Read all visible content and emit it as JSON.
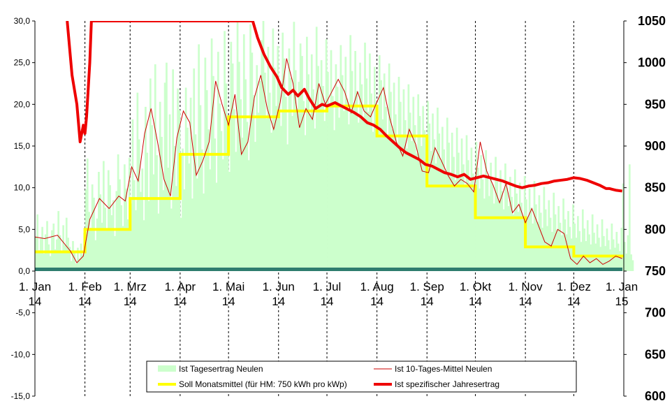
{
  "chart_data": {
    "type": "bar+line",
    "title": "",
    "x_range": [
      "2014-01-01",
      "2015-01-01"
    ],
    "x_ticks": [
      {
        "label": "1. Jan",
        "year": "14",
        "date": "2014-01-01"
      },
      {
        "label": "1. Feb",
        "year": "14",
        "date": "2014-02-01"
      },
      {
        "label": "1. Mrz",
        "year": "14",
        "date": "2014-03-01"
      },
      {
        "label": "1. Apr",
        "year": "14",
        "date": "2014-04-01"
      },
      {
        "label": "1. Mai",
        "year": "14",
        "date": "2014-05-01"
      },
      {
        "label": "1. Jun",
        "year": "14",
        "date": "2014-06-01"
      },
      {
        "label": "1. Jul",
        "year": "14",
        "date": "2014-07-01"
      },
      {
        "label": "1. Aug",
        "year": "14",
        "date": "2014-08-01"
      },
      {
        "label": "1. Sep",
        "year": "14",
        "date": "2014-09-01"
      },
      {
        "label": "1. Okt",
        "year": "14",
        "date": "2014-10-01"
      },
      {
        "label": "1. Nov",
        "year": "14",
        "date": "2014-11-01"
      },
      {
        "label": "1. Dez",
        "year": "14",
        "date": "2014-12-01"
      },
      {
        "label": "1. Jan",
        "year": "15",
        "date": "2015-01-01"
      }
    ],
    "y_left": {
      "min": -15,
      "max": 30,
      "step": 5,
      "ticks": [
        "30,0",
        "25,0",
        "20,0",
        "15,0",
        "10,0",
        "5,0",
        "0,0",
        "-5,0",
        "-10,0",
        "-15,0"
      ]
    },
    "y_right": {
      "min": 600,
      "max": 1050,
      "step": 50,
      "ticks": [
        "1050",
        "1000",
        "950",
        "900",
        "850",
        "800",
        "750",
        "700",
        "650",
        "600"
      ]
    },
    "grid": "vertical dashed at month starts",
    "legend_position": "bottom",
    "colors": {
      "bars": "#ccffcc",
      "avg10": "#cc0000",
      "soll": "#ffff00",
      "jahresertrag": "#ee0000",
      "baseline": "#2e7d6e"
    },
    "series": [
      {
        "name": "Ist Tagesertrag Neulen",
        "kind": "bar",
        "axis": "left",
        "description": "daily yield (kWh/kWp), 365 values starting 1 Jan 2014",
        "values": [
          4.1,
          6.8,
          2.5,
          3.9,
          5.3,
          2.1,
          4.4,
          6.0,
          3.2,
          1.8,
          4.9,
          5.7,
          2.6,
          3.8,
          7.2,
          4.3,
          2.2,
          5.5,
          3.1,
          6.4,
          4.0,
          2.9,
          1.2,
          3.6,
          2.4,
          0.9,
          2.8,
          1.5,
          3.3,
          2.0,
          4.6,
          9.8,
          13.5,
          7.1,
          5.2,
          10.4,
          8.8,
          3.7,
          6.3,
          11.9,
          9.2,
          5.8,
          13.2,
          7.6,
          4.9,
          12.1,
          10.3,
          6.7,
          8.5,
          4.2,
          9.6,
          14.0,
          11.0,
          7.9,
          5.4,
          12.8,
          9.9,
          6.2,
          13.6,
          8.1,
          18.2,
          10.9,
          7.3,
          21.4,
          15.8,
          9.5,
          12.3,
          6.1,
          19.7,
          14.2,
          8.4,
          23.1,
          17.5,
          11.6,
          24.8,
          13.9,
          6.9,
          20.3,
          16.1,
          9.7,
          22.6,
          25.0,
          12.4,
          18.8,
          7.5,
          24.2,
          15.0,
          10.2,
          21.9,
          19.3,
          6.4,
          14.7,
          9.8,
          22.0,
          17.2,
          12.9,
          20.8,
          8.7,
          24.3,
          16.4,
          11.1,
          27.2,
          19.9,
          14.6,
          9.3,
          25.6,
          21.7,
          17.0,
          12.2,
          27.9,
          23.4,
          15.9,
          10.6,
          26.3,
          20.1,
          16.8,
          13.4,
          28.8,
          22.5,
          18.7,
          11.9,
          27.5,
          24.9,
          19.4,
          14.3,
          30.0,
          25.1,
          20.6,
          16.0,
          28.4,
          23.0,
          17.9,
          13.3,
          29.6,
          26.2,
          21.1,
          15.5,
          24.7,
          19.0,
          22.8,
          27.7,
          30.0,
          23.8,
          18.3,
          26.9,
          21.4,
          16.6,
          29.1,
          24.4,
          19.8,
          27.0,
          22.3,
          17.4,
          28.6,
          25.5,
          20.9,
          15.2,
          26.7,
          23.2,
          18.6,
          29.9,
          24.1,
          19.5,
          22.7,
          27.3,
          25.8,
          20.4,
          16.3,
          28.1,
          23.6,
          18.9,
          26.0,
          21.8,
          17.1,
          29.3,
          24.6,
          20.0,
          25.3,
          22.2,
          18.0,
          27.8,
          23.9,
          19.6,
          26.5,
          21.0,
          16.9,
          24.8,
          22.1,
          18.4,
          27.1,
          23.5,
          19.2,
          25.7,
          20.7,
          17.6,
          28.3,
          24.0,
          19.9,
          26.4,
          21.6,
          17.8,
          25.0,
          22.4,
          18.5,
          27.4,
          23.1,
          19.1,
          26.1,
          21.3,
          16.7,
          24.5,
          20.2,
          17.3,
          25.9,
          22.9,
          18.2,
          23.7,
          19.7,
          16.1,
          24.9,
          21.5,
          17.0,
          22.6,
          18.8,
          15.3,
          23.3,
          20.3,
          16.4,
          21.8,
          18.1,
          14.7,
          22.4,
          19.0,
          15.6,
          20.9,
          17.5,
          14.1,
          21.2,
          18.6,
          15.0,
          19.8,
          16.9,
          13.5,
          20.4,
          17.7,
          14.4,
          18.9,
          15.8,
          12.9,
          19.6,
          16.5,
          13.2,
          17.3,
          14.6,
          12.0,
          18.4,
          15.4,
          11.8,
          16.6,
          13.7,
          10.9,
          17.2,
          14.2,
          11.3,
          15.9,
          12.8,
          10.1,
          16.3,
          13.3,
          10.6,
          14.8,
          11.7,
          9.4,
          15.5,
          12.4,
          9.9,
          13.9,
          11.0,
          8.7,
          14.5,
          11.5,
          9.0,
          13.0,
          10.4,
          8.1,
          13.7,
          10.8,
          8.5,
          12.1,
          9.6,
          7.4,
          12.9,
          10.0,
          7.8,
          11.3,
          8.9,
          6.8,
          12.2,
          9.3,
          7.1,
          10.6,
          8.2,
          6.2,
          11.4,
          8.6,
          6.5,
          9.9,
          7.6,
          5.7,
          10.8,
          8.0,
          5.9,
          9.1,
          7.0,
          5.2,
          10.1,
          7.4,
          5.4,
          8.5,
          6.4,
          4.7,
          9.4,
          6.8,
          4.9,
          7.8,
          5.8,
          4.3,
          8.7,
          6.2,
          4.4,
          7.2,
          5.3,
          3.9,
          8.0,
          5.7,
          4.0,
          6.6,
          4.8,
          3.5,
          7.4,
          5.1,
          3.6,
          6.1,
          4.4,
          3.2,
          6.8,
          4.6,
          3.3,
          5.6,
          4.0,
          2.9,
          6.2,
          4.2,
          3.0,
          5.1,
          3.7,
          2.6,
          5.7,
          3.8,
          2.8,
          4.7,
          3.3,
          2.4,
          5.2,
          10.5,
          3.5,
          2.1,
          4.3,
          12.8,
          2.0,
          1.3
        ]
      },
      {
        "name": "Ist 10-Tages-Mittel Neulen",
        "kind": "line",
        "axis": "left",
        "points": [
          [
            0,
            4.1
          ],
          [
            6,
            3.9
          ],
          [
            14,
            4.3
          ],
          [
            22,
            2.4
          ],
          [
            26,
            1.0
          ],
          [
            30,
            1.8
          ],
          [
            34,
            6.2
          ],
          [
            40,
            8.7
          ],
          [
            46,
            7.5
          ],
          [
            52,
            9.0
          ],
          [
            56,
            8.4
          ],
          [
            60,
            12.5
          ],
          [
            64,
            10.8
          ],
          [
            68,
            16.5
          ],
          [
            72,
            19.5
          ],
          [
            76,
            15.5
          ],
          [
            80,
            11.0
          ],
          [
            84,
            9.0
          ],
          [
            88,
            16.0
          ],
          [
            92,
            19.2
          ],
          [
            96,
            17.8
          ],
          [
            100,
            11.5
          ],
          [
            104,
            13.2
          ],
          [
            108,
            15.5
          ],
          [
            112,
            22.8
          ],
          [
            116,
            20.0
          ],
          [
            120,
            17.5
          ],
          [
            124,
            21.2
          ],
          [
            128,
            14.0
          ],
          [
            132,
            15.5
          ],
          [
            136,
            20.8
          ],
          [
            140,
            23.5
          ],
          [
            144,
            19.5
          ],
          [
            148,
            17.0
          ],
          [
            152,
            20.2
          ],
          [
            156,
            25.5
          ],
          [
            160,
            22.5
          ],
          [
            164,
            17.2
          ],
          [
            168,
            19.5
          ],
          [
            172,
            18.2
          ],
          [
            176,
            22.5
          ],
          [
            180,
            20.0
          ],
          [
            184,
            21.5
          ],
          [
            188,
            23.0
          ],
          [
            192,
            21.5
          ],
          [
            196,
            19.0
          ],
          [
            200,
            21.5
          ],
          [
            204,
            19.2
          ],
          [
            208,
            18.5
          ],
          [
            212,
            20.3
          ],
          [
            216,
            22.0
          ],
          [
            220,
            18.3
          ],
          [
            224,
            15.5
          ],
          [
            228,
            13.8
          ],
          [
            232,
            17.0
          ],
          [
            236,
            15.2
          ],
          [
            240,
            12.0
          ],
          [
            244,
            11.8
          ],
          [
            248,
            14.8
          ],
          [
            252,
            13.2
          ],
          [
            256,
            11.5
          ],
          [
            260,
            10.2
          ],
          [
            264,
            11.0
          ],
          [
            268,
            10.5
          ],
          [
            272,
            9.5
          ],
          [
            276,
            15.5
          ],
          [
            280,
            12.0
          ],
          [
            284,
            10.3
          ],
          [
            288,
            8.2
          ],
          [
            292,
            10.5
          ],
          [
            296,
            7.0
          ],
          [
            300,
            8.0
          ],
          [
            304,
            5.8
          ],
          [
            308,
            7.5
          ],
          [
            312,
            5.5
          ],
          [
            316,
            3.5
          ],
          [
            320,
            3.0
          ],
          [
            324,
            5.0
          ],
          [
            328,
            4.5
          ],
          [
            332,
            1.5
          ],
          [
            336,
            0.8
          ],
          [
            340,
            1.8
          ],
          [
            344,
            1.0
          ],
          [
            348,
            1.5
          ],
          [
            352,
            0.8
          ],
          [
            356,
            1.2
          ],
          [
            360,
            1.8
          ],
          [
            364,
            1.5
          ]
        ]
      },
      {
        "name": "Soll Monatsmittel (für HM: 750 kWh pro kWp)",
        "kind": "step",
        "axis": "left",
        "months": [
          "Jan",
          "Feb",
          "Mrz",
          "Apr",
          "Mai",
          "Jun",
          "Jul",
          "Aug",
          "Sep",
          "Okt",
          "Nov",
          "Dez"
        ],
        "values": [
          2.3,
          5.0,
          8.7,
          14.0,
          18.5,
          19.2,
          19.8,
          16.2,
          10.2,
          6.4,
          2.9,
          1.8
        ]
      },
      {
        "name": "Ist spezifischer Jahresertrag",
        "kind": "line",
        "axis": "right",
        "points": [
          [
            20,
            1050
          ],
          [
            23,
            985
          ],
          [
            26,
            950
          ],
          [
            28,
            905
          ],
          [
            30,
            925
          ],
          [
            31,
            915
          ],
          [
            32,
            935
          ],
          [
            34,
            1000
          ],
          [
            35,
            1050
          ],
          [
            135,
            1050
          ],
          [
            138,
            1030
          ],
          [
            142,
            1010
          ],
          [
            146,
            995
          ],
          [
            150,
            983
          ],
          [
            153,
            970
          ],
          [
            157,
            962
          ],
          [
            160,
            967
          ],
          [
            163,
            960
          ],
          [
            167,
            968
          ],
          [
            170,
            957
          ],
          [
            174,
            945
          ],
          [
            178,
            950
          ],
          [
            181,
            948
          ],
          [
            186,
            952
          ],
          [
            190,
            948
          ],
          [
            194,
            944
          ],
          [
            198,
            940
          ],
          [
            202,
            935
          ],
          [
            206,
            928
          ],
          [
            210,
            925
          ],
          [
            214,
            920
          ],
          [
            218,
            912
          ],
          [
            222,
            905
          ],
          [
            226,
            898
          ],
          [
            230,
            892
          ],
          [
            234,
            888
          ],
          [
            238,
            884
          ],
          [
            242,
            878
          ],
          [
            246,
            876
          ],
          [
            250,
            872
          ],
          [
            254,
            868
          ],
          [
            258,
            866
          ],
          [
            262,
            863
          ],
          [
            266,
            866
          ],
          [
            270,
            860
          ],
          [
            274,
            862
          ],
          [
            278,
            864
          ],
          [
            282,
            862
          ],
          [
            286,
            860
          ],
          [
            290,
            858
          ],
          [
            294,
            855
          ],
          [
            298,
            852
          ],
          [
            302,
            850
          ],
          [
            306,
            852
          ],
          [
            310,
            853
          ],
          [
            314,
            855
          ],
          [
            318,
            856
          ],
          [
            322,
            858
          ],
          [
            326,
            859
          ],
          [
            330,
            860
          ],
          [
            334,
            862
          ],
          [
            338,
            861
          ],
          [
            342,
            859
          ],
          [
            346,
            856
          ],
          [
            350,
            853
          ],
          [
            354,
            849
          ],
          [
            356,
            849
          ],
          [
            358,
            848
          ],
          [
            360,
            847
          ],
          [
            364,
            846
          ]
        ]
      }
    ]
  },
  "legend": {
    "items": [
      {
        "label": "Ist Tagesertrag Neulen",
        "swatch": "bar"
      },
      {
        "label": "Ist 10-Tages-Mittel Neulen",
        "swatch": "thin-line"
      },
      {
        "label": "Soll Monatsmittel (für HM: 750 kWh pro kWp)",
        "swatch": "thick-yellow"
      },
      {
        "label": "Ist spezifischer Jahresertrag",
        "swatch": "thick-red"
      }
    ]
  }
}
